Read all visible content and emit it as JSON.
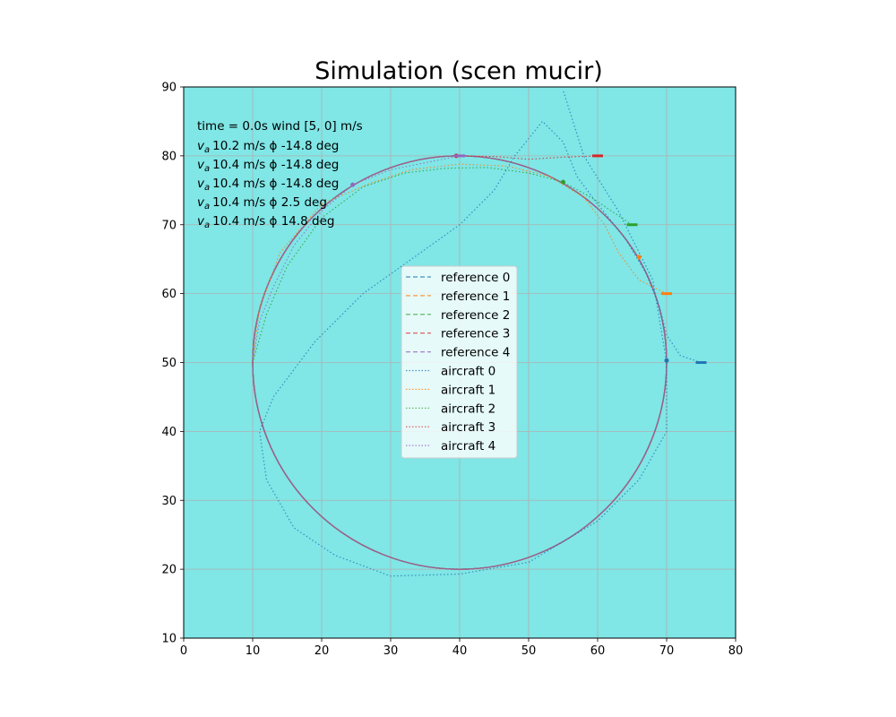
{
  "chart_data": {
    "type": "line",
    "title": "Simulation (scen mucir)",
    "xlabel": "",
    "ylabel": "",
    "xlim": [
      0,
      80
    ],
    "ylim": [
      10,
      90
    ],
    "xticks": [
      0,
      10,
      20,
      30,
      40,
      50,
      60,
      70,
      80
    ],
    "yticks": [
      10,
      20,
      30,
      40,
      50,
      60,
      70,
      80,
      90
    ],
    "grid": true,
    "background_color": "#80e6e6",
    "legend_position": "center",
    "annotations": {
      "time_line": "time = 0.0s wind [5, 0] m/s",
      "aircraft_lines": [
        "10.2 m/s ϕ -14.8 deg",
        "10.4 m/s ϕ -14.8 deg",
        "10.4 m/s ϕ -14.8 deg",
        "10.4 m/s ϕ 2.5 deg",
        "10.4 m/s ϕ 14.8 deg"
      ],
      "va_symbol": "v",
      "va_subscript": "a"
    },
    "reference_circle": {
      "center": [
        40,
        50
      ],
      "radius": 30
    },
    "reference_series": [
      {
        "name": "reference 0",
        "color": "#1f77b4",
        "style": "dashed"
      },
      {
        "name": "reference 1",
        "color": "#ff7f0e",
        "style": "dashed"
      },
      {
        "name": "reference 2",
        "color": "#2ca02c",
        "style": "dashed"
      },
      {
        "name": "reference 3",
        "color": "#d62728",
        "style": "dashed"
      },
      {
        "name": "reference 4",
        "color": "#9467bd",
        "style": "dashed"
      }
    ],
    "aircraft_series": [
      {
        "name": "aircraft 0",
        "color": "#1f77b4",
        "style": "dotted",
        "start": [
          75,
          50
        ],
        "current": [
          70,
          50.3
        ],
        "points": [
          [
            75,
            50
          ],
          [
            72,
            51
          ],
          [
            70,
            54
          ],
          [
            69,
            58
          ],
          [
            67,
            63
          ],
          [
            64,
            68
          ],
          [
            60,
            73
          ],
          [
            57,
            77
          ],
          [
            55,
            82
          ],
          [
            52,
            85
          ],
          [
            48,
            80
          ],
          [
            45,
            75
          ],
          [
            40,
            70
          ],
          [
            33,
            65
          ],
          [
            26,
            60
          ],
          [
            19,
            53
          ],
          [
            13,
            45
          ],
          [
            11,
            40
          ],
          [
            12,
            33
          ],
          [
            16,
            26
          ],
          [
            22,
            22
          ],
          [
            30,
            19
          ],
          [
            40,
            19.3
          ],
          [
            50,
            21
          ],
          [
            60,
            27
          ],
          [
            66,
            33
          ],
          [
            70,
            40
          ],
          [
            70,
            50
          ],
          [
            68,
            62
          ],
          [
            63,
            72
          ],
          [
            58,
            80
          ],
          [
            55,
            89.5
          ]
        ]
      },
      {
        "name": "aircraft 1",
        "color": "#ff7f0e",
        "style": "dotted",
        "start": [
          70,
          60
        ],
        "current": [
          66,
          65.3
        ],
        "points": [
          [
            70,
            60
          ],
          [
            66,
            62
          ],
          [
            63,
            66
          ],
          [
            61,
            70
          ],
          [
            58,
            74
          ],
          [
            53,
            77
          ],
          [
            47,
            78.5
          ],
          [
            40,
            78.8
          ],
          [
            33,
            78
          ],
          [
            27,
            76
          ],
          [
            20,
            73
          ],
          [
            14,
            66
          ],
          [
            11,
            58
          ],
          [
            10,
            50
          ]
        ]
      },
      {
        "name": "aircraft 2",
        "color": "#2ca02c",
        "style": "dotted",
        "start": [
          65,
          70
        ],
        "current": [
          55,
          76.2
        ],
        "points": [
          [
            65,
            70
          ],
          [
            62,
            72
          ],
          [
            59,
            74
          ],
          [
            55,
            76.2
          ],
          [
            50,
            77.5
          ],
          [
            44,
            78.3
          ],
          [
            38,
            78.2
          ],
          [
            32,
            77.5
          ],
          [
            26,
            75.5
          ],
          [
            20,
            71
          ],
          [
            15,
            64
          ],
          [
            12,
            57
          ],
          [
            10,
            50
          ]
        ]
      },
      {
        "name": "aircraft 3",
        "color": "#d62728",
        "style": "dotted",
        "start": [
          60,
          80
        ],
        "current": [
          39.5,
          80
        ],
        "points": [
          [
            60,
            80
          ],
          [
            55,
            79.8
          ],
          [
            50,
            79.5
          ],
          [
            45,
            79.9
          ],
          [
            39.5,
            80
          ]
        ]
      },
      {
        "name": "aircraft 4",
        "color": "#9467bd",
        "style": "dotted",
        "start": [
          40,
          80
        ],
        "current": [
          24.5,
          75.8
        ],
        "points": [
          [
            40,
            80
          ],
          [
            35,
            79
          ],
          [
            30,
            78
          ],
          [
            24.5,
            75.8
          ],
          [
            20,
            72
          ],
          [
            16,
            67
          ],
          [
            13,
            61
          ],
          [
            11,
            56
          ],
          [
            10,
            50
          ]
        ]
      }
    ]
  }
}
